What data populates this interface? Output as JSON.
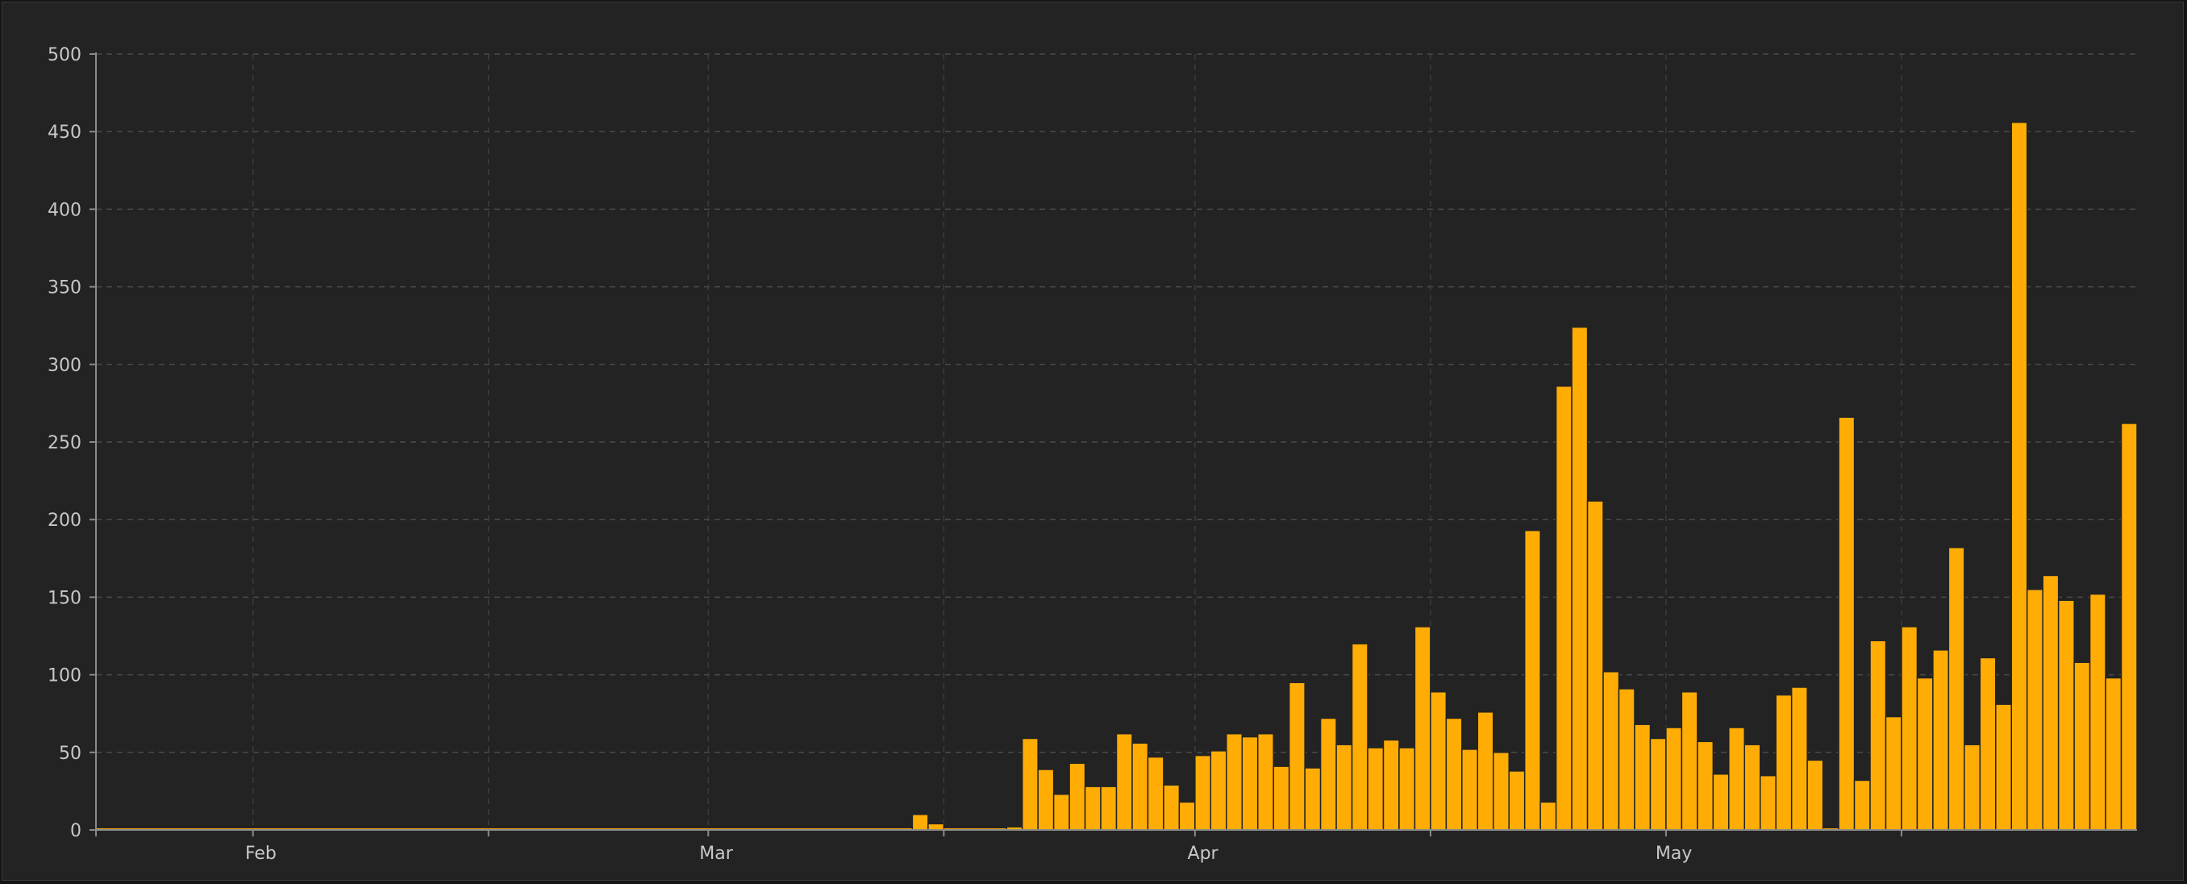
{
  "chart_data": {
    "type": "bar",
    "title": "",
    "xlabel": "",
    "ylabel": "",
    "x_start": "2020-01-22",
    "x_tick_labels": [
      {
        "date": "2020-02-01",
        "label": "Feb"
      },
      {
        "date": "2020-03-01",
        "label": "Mar"
      },
      {
        "date": "2020-04-01",
        "label": "Apr"
      },
      {
        "date": "2020-05-01",
        "label": "May"
      }
    ],
    "x_grid_dates": [
      "2020-01-22",
      "2020-02-01",
      "2020-02-16",
      "2020-03-01",
      "2020-03-16",
      "2020-04-01",
      "2020-04-16",
      "2020-05-01",
      "2020-05-16"
    ],
    "ylim": [
      0,
      500
    ],
    "y_ticks": [
      0,
      50,
      100,
      150,
      200,
      250,
      300,
      350,
      400,
      450,
      500
    ],
    "grid": true,
    "bar_color": "#ffad05",
    "background_color": "#232323",
    "values": [
      0,
      0,
      0,
      0,
      0,
      0,
      0,
      0,
      0,
      0,
      0,
      0,
      0,
      0,
      0,
      0,
      0,
      0,
      0,
      0,
      0,
      0,
      0,
      0,
      0,
      0,
      0,
      0,
      0,
      0,
      0,
      0,
      0,
      0,
      0,
      0,
      0,
      0,
      0,
      0,
      0,
      0,
      0,
      0,
      0,
      0,
      0,
      0,
      0,
      0,
      0,
      0,
      10,
      4,
      0,
      0,
      0,
      0,
      2,
      59,
      39,
      23,
      43,
      28,
      28,
      62,
      56,
      47,
      29,
      18,
      48,
      51,
      62,
      60,
      62,
      41,
      95,
      40,
      72,
      55,
      120,
      53,
      58,
      53,
      131,
      89,
      72,
      52,
      76,
      50,
      38,
      193,
      18,
      286,
      324,
      212,
      102,
      91,
      68,
      59,
      66,
      89,
      57,
      36,
      66,
      55,
      35,
      87,
      92,
      45,
      0,
      266,
      32,
      122,
      73,
      131,
      98,
      116,
      182,
      55,
      111,
      81,
      456,
      155,
      164,
      148,
      108,
      152,
      98,
      262
    ]
  }
}
